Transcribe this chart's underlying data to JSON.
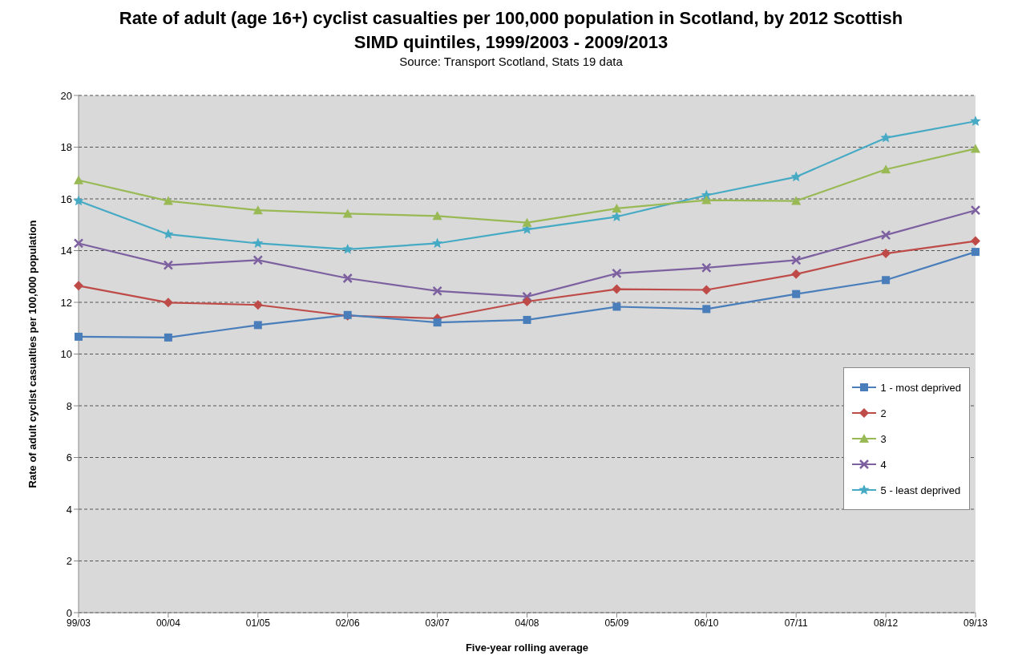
{
  "chart_data": {
    "type": "line",
    "title": "Rate of adult (age 16+) cyclist casualties per 100,000 population in Scotland, by 2012 Scottish SIMD quintiles, 1999/2003 - 2009/2013",
    "annotations": [
      "Source: Transport Scotland, Stats 19 data"
    ],
    "xlabel": "Five-year rolling average",
    "ylabel": "Rate of adult cyclist casualties per 100,000 population",
    "categories": [
      "99/03",
      "00/04",
      "01/05",
      "02/06",
      "03/07",
      "04/08",
      "05/09",
      "06/10",
      "07/11",
      "08/12",
      "09/13"
    ],
    "series": [
      {
        "name": "1 - most deprived",
        "color": "#4a7ebb",
        "marker": "square",
        "values": [
          10.67,
          10.64,
          11.12,
          11.51,
          11.22,
          11.32,
          11.83,
          11.74,
          12.32,
          12.86,
          13.95
        ]
      },
      {
        "name": "2",
        "color": "#be4b48",
        "marker": "diamond",
        "values": [
          12.64,
          11.99,
          11.9,
          11.48,
          11.38,
          12.03,
          12.51,
          12.48,
          13.09,
          13.89,
          14.37
        ]
      },
      {
        "name": "3",
        "color": "#98b954",
        "marker": "triangle",
        "values": [
          16.72,
          15.92,
          15.56,
          15.43,
          15.34,
          15.08,
          15.63,
          15.95,
          15.92,
          17.14,
          17.94
        ]
      },
      {
        "name": "4",
        "color": "#7d60a0",
        "marker": "cross",
        "values": [
          14.28,
          13.44,
          13.63,
          12.93,
          12.44,
          12.22,
          13.12,
          13.34,
          13.63,
          14.6,
          15.56
        ]
      },
      {
        "name": "5 - least deprived",
        "color": "#46aac5",
        "marker": "star",
        "values": [
          15.92,
          14.63,
          14.28,
          14.05,
          14.28,
          14.82,
          15.31,
          16.14,
          16.85,
          18.36,
          19.0
        ]
      }
    ],
    "ylim": [
      0,
      20
    ],
    "yticks": [
      0,
      2,
      4,
      6,
      8,
      10,
      12,
      14,
      16,
      18,
      20
    ],
    "grid": "y",
    "legend": "right",
    "line_style": "solid"
  }
}
